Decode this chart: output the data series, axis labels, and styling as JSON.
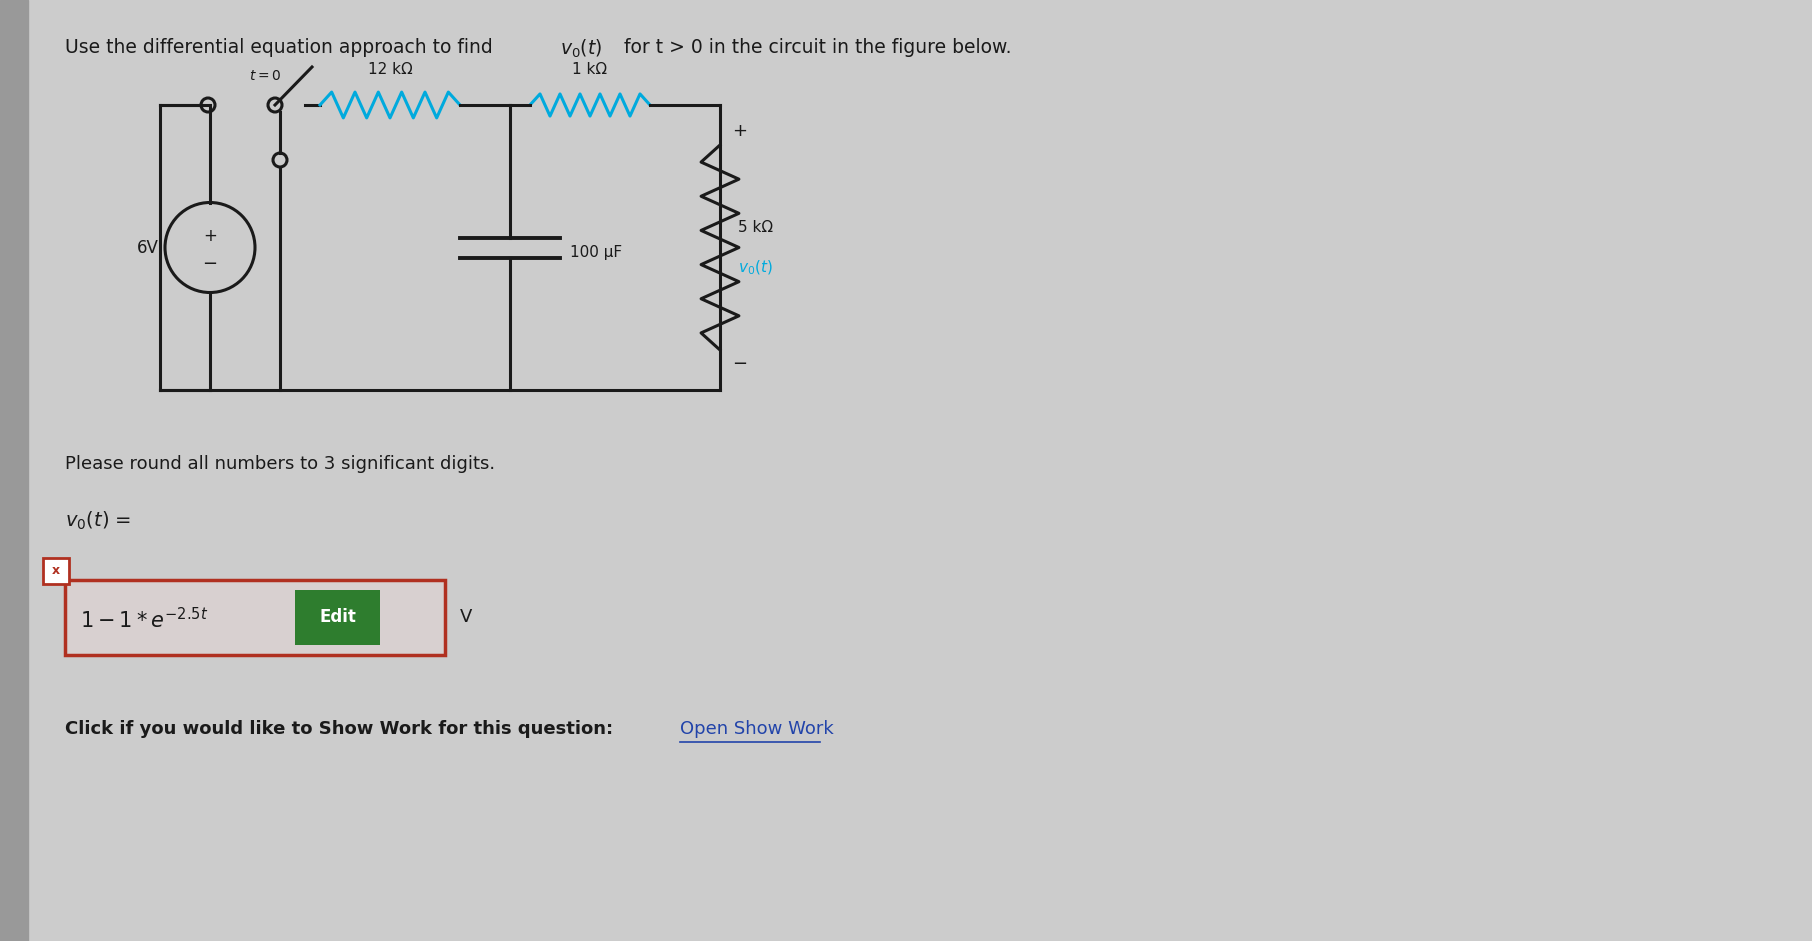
{
  "bg_color": "#cccccc",
  "left_bar_color": "#b0b0b0",
  "circuit_color": "#1a1a1a",
  "cyan_color": "#00aadd",
  "green_btn_color": "#2e7d2e",
  "red_border_color": "#b03020",
  "blue_link_color": "#2244aa",
  "title_line": "Use the differential equation approach to find v₀(t) for t > 0 in the circuit in the figure below.",
  "label_12k": "12 kΩ",
  "label_1k": "1 kΩ",
  "label_cap": "100 μF",
  "label_5k": "5 kΩ",
  "label_vo": "v₀(t)",
  "label_source": "6V",
  "label_switch": "t = 0",
  "label_plus": "+",
  "label_minus": "−",
  "please_round": "Please round all numbers to 3 significant digits.",
  "vo_eq": "v₀(t) =",
  "unit": "V",
  "edit_btn_text": "Edit",
  "click_text": "Click if you would like to Show Work for this question:",
  "open_work_text": "Open Show Work"
}
